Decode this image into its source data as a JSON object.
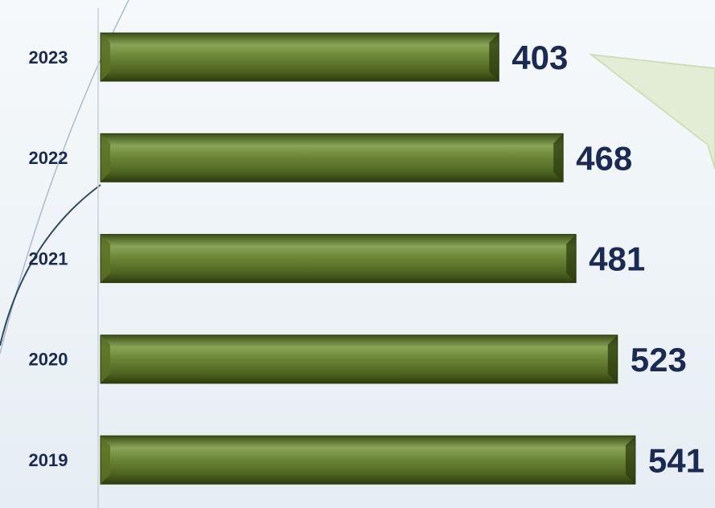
{
  "chart_data": {
    "type": "bar",
    "orientation": "horizontal",
    "categories": [
      "2023",
      "2022",
      "2021",
      "2020",
      "2019"
    ],
    "values": [
      403,
      468,
      481,
      523,
      541
    ],
    "color": "#5a7125"
  }
}
